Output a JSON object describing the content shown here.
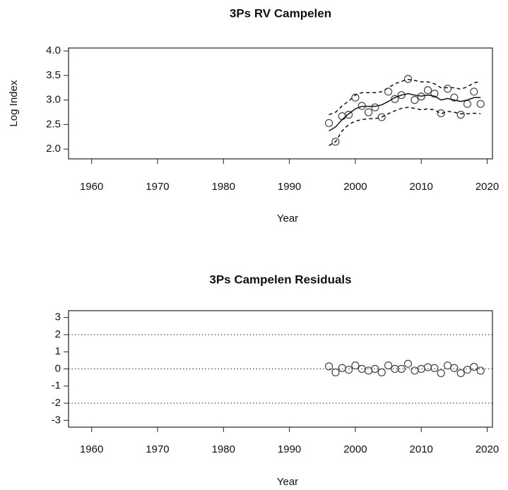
{
  "chart_data": [
    {
      "type": "line",
      "title": "3Ps RV Campelen",
      "y_label": "Log Index",
      "x_label": "Year",
      "x": [
        1996,
        1997,
        1998,
        1999,
        2000,
        2001,
        2002,
        2003,
        2004,
        2005,
        2006,
        2007,
        2008,
        2009,
        2010,
        2011,
        2012,
        2013,
        2014,
        2015,
        2016,
        2017,
        2018,
        2019
      ],
      "series": [
        {
          "style": "points",
          "color": "#444444",
          "values": [
            2.53,
            2.15,
            2.67,
            2.7,
            3.05,
            2.88,
            2.75,
            2.85,
            2.65,
            3.17,
            3.02,
            3.1,
            3.43,
            3.0,
            3.07,
            3.2,
            3.13,
            2.73,
            3.23,
            3.05,
            2.7,
            2.92,
            3.17,
            2.92
          ]
        },
        {
          "style": "solid",
          "color": "#111111",
          "values": [
            2.37,
            2.45,
            2.6,
            2.72,
            2.82,
            2.87,
            2.87,
            2.87,
            2.9,
            2.97,
            3.05,
            3.1,
            3.13,
            3.1,
            3.08,
            3.1,
            3.08,
            3.0,
            3.03,
            3.0,
            2.97,
            3.0,
            3.05,
            3.05
          ]
        },
        {
          "style": "dashed",
          "color": "#111111",
          "values": [
            2.7,
            2.75,
            2.88,
            2.98,
            3.1,
            3.15,
            3.15,
            3.15,
            3.17,
            3.25,
            3.33,
            3.38,
            3.42,
            3.4,
            3.37,
            3.37,
            3.33,
            3.25,
            3.25,
            3.25,
            3.22,
            3.27,
            3.35,
            3.38
          ]
        },
        {
          "style": "dashed",
          "color": "#111111",
          "values": [
            2.07,
            2.15,
            2.37,
            2.5,
            2.57,
            2.6,
            2.62,
            2.62,
            2.65,
            2.72,
            2.78,
            2.83,
            2.85,
            2.83,
            2.8,
            2.82,
            2.8,
            2.72,
            2.77,
            2.75,
            2.72,
            2.72,
            2.73,
            2.72
          ]
        }
      ],
      "xlim": [
        1956.5,
        2020.8
      ],
      "xticks": [
        1960,
        1970,
        1980,
        1990,
        2000,
        2010,
        2020
      ],
      "ylim": [
        1.8,
        4.06
      ],
      "yticks": [
        {
          "value": 2,
          "label": "2.0"
        },
        2.5,
        {
          "value": 3,
          "label": "3.0"
        },
        3.5,
        {
          "value": 4,
          "label": "4.0"
        }
      ]
    },
    {
      "type": "scatter",
      "title": "3Ps Campelen Residuals",
      "x_label": "Year",
      "x": [
        1996,
        1997,
        1998,
        1999,
        2000,
        2001,
        2002,
        2003,
        2004,
        2005,
        2006,
        2007,
        2008,
        2009,
        2010,
        2011,
        2012,
        2013,
        2014,
        2015,
        2016,
        2017,
        2018,
        2019
      ],
      "series": [
        {
          "style": "points",
          "color": "#444444",
          "values": [
            0.15,
            -0.2,
            0.05,
            -0.05,
            0.2,
            0,
            -0.1,
            0,
            -0.2,
            0.2,
            0,
            0,
            0.3,
            -0.1,
            0,
            0.1,
            0.05,
            -0.25,
            0.2,
            0.05,
            -0.25,
            -0.05,
            0.12,
            -0.1
          ]
        }
      ],
      "reference_lines": [
        -2,
        0,
        2
      ],
      "reference_style": "dotted",
      "xlim": [
        1956.5,
        2020.8
      ],
      "xticks": [
        1960,
        1970,
        1980,
        1990,
        2000,
        2010,
        2020
      ],
      "ylim": [
        -3.4,
        3.4
      ],
      "yticks": [
        -3,
        -2,
        -1,
        0,
        1,
        2,
        3
      ]
    }
  ]
}
